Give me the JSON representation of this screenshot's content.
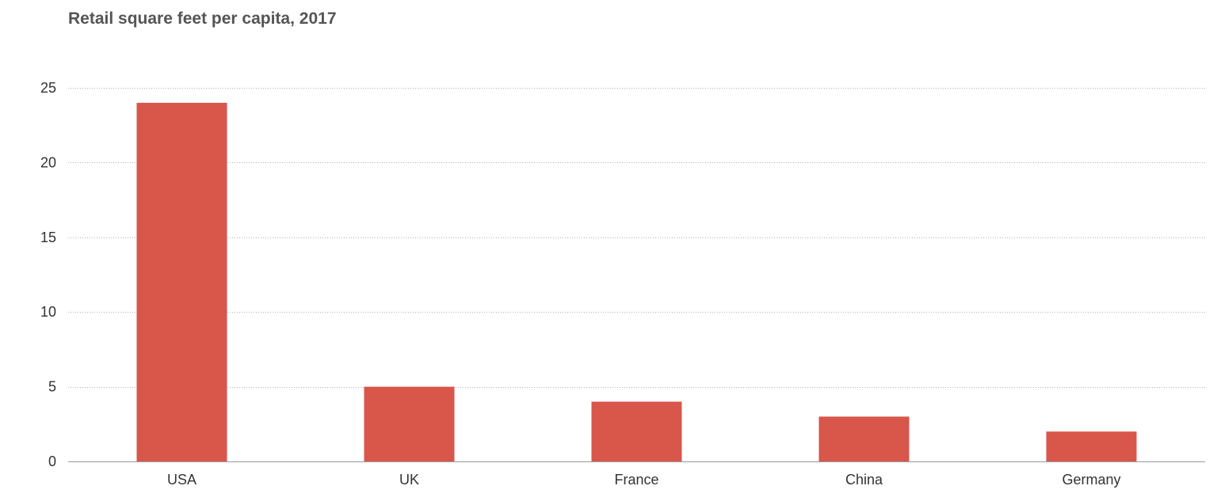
{
  "chart_data": {
    "type": "bar",
    "title": "Retail square feet per capita, 2017",
    "xlabel": "",
    "ylabel": "",
    "categories": [
      "USA",
      "UK",
      "France",
      "China",
      "Germany"
    ],
    "values": [
      24,
      5,
      4,
      3,
      2
    ],
    "ylim": [
      0,
      25
    ],
    "yticks": [
      "0",
      "5",
      "10",
      "15",
      "20",
      "25"
    ],
    "grid": true,
    "bar_color": "#d9564a"
  }
}
